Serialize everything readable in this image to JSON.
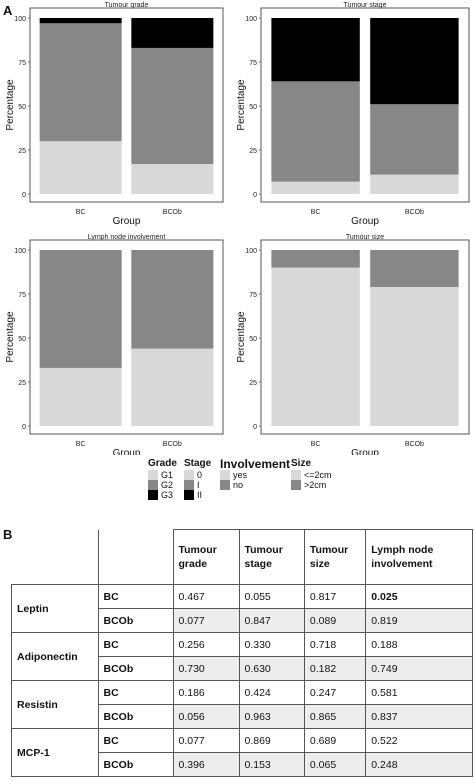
{
  "panel_a_letter": "A",
  "panel_b_letter": "B",
  "chart_data": [
    {
      "type": "bar",
      "stacked": true,
      "title": "Tumour grade",
      "xlabel": "Group",
      "ylabel": "Percentage",
      "categories": [
        "BC",
        "BCOb"
      ],
      "ylim": [
        0,
        100
      ],
      "yticks": [
        "0",
        "25",
        "50",
        "75",
        "100"
      ],
      "series": [
        {
          "name": "G1",
          "color": "#d8d8d8",
          "values": [
            30,
            17
          ]
        },
        {
          "name": "G2",
          "color": "#878787",
          "values": [
            67,
            66
          ]
        },
        {
          "name": "G3",
          "color": "#000000",
          "values": [
            3,
            17
          ]
        }
      ]
    },
    {
      "type": "bar",
      "stacked": true,
      "title": "Tumour stage",
      "xlabel": "Group",
      "ylabel": "Percentage",
      "categories": [
        "BC",
        "BCOb"
      ],
      "ylim": [
        0,
        100
      ],
      "yticks": [
        "0",
        "25",
        "50",
        "75",
        "100"
      ],
      "series": [
        {
          "name": "0",
          "color": "#d8d8d8",
          "values": [
            7,
            11
          ]
        },
        {
          "name": "I",
          "color": "#878787",
          "values": [
            57,
            40
          ]
        },
        {
          "name": "II",
          "color": "#000000",
          "values": [
            36,
            49
          ]
        }
      ]
    },
    {
      "type": "bar",
      "stacked": true,
      "title": "Lymph node involvement",
      "xlabel": "Group",
      "ylabel": "Percentage",
      "categories": [
        "BC",
        "BCOb"
      ],
      "ylim": [
        0,
        100
      ],
      "yticks": [
        "0",
        "25",
        "50",
        "75",
        "100"
      ],
      "series": [
        {
          "name": "yes",
          "color": "#d8d8d8",
          "values": [
            33,
            44
          ]
        },
        {
          "name": "no",
          "color": "#878787",
          "values": [
            67,
            56
          ]
        }
      ]
    },
    {
      "type": "bar",
      "stacked": true,
      "title": "Tumour size",
      "xlabel": "Group",
      "ylabel": "Percentage",
      "categories": [
        "BC",
        "BCOb"
      ],
      "ylim": [
        0,
        100
      ],
      "yticks": [
        "0",
        "25",
        "50",
        "75",
        "100"
      ],
      "series": [
        {
          "name": "<=2cm",
          "color": "#d8d8d8",
          "values": [
            90,
            79
          ]
        },
        {
          "name": ">2cm",
          "color": "#878787",
          "values": [
            10,
            21
          ]
        }
      ]
    }
  ],
  "legend": [
    {
      "title": "Grade",
      "entries": [
        {
          "label": "G1",
          "color": "#d8d8d8"
        },
        {
          "label": "G2",
          "color": "#878787"
        },
        {
          "label": "G3",
          "color": "#000000"
        }
      ]
    },
    {
      "title": "Stage",
      "entries": [
        {
          "label": "0",
          "color": "#d8d8d8"
        },
        {
          "label": "I",
          "color": "#878787"
        },
        {
          "label": "II",
          "color": "#000000"
        }
      ]
    },
    {
      "title": "Involvement",
      "entries": [
        {
          "label": "yes",
          "color": "#d8d8d8"
        },
        {
          "label": "no",
          "color": "#878787"
        }
      ]
    },
    {
      "title": "Size",
      "entries": [
        {
          "label": "<=2cm",
          "color": "#d8d8d8"
        },
        {
          "label": ">2cm",
          "color": "#878787"
        }
      ]
    }
  ],
  "table": {
    "headers": [
      "Tumour grade",
      "Tumour stage",
      "Tumour size",
      "Lymph node involvement"
    ],
    "markers": [
      {
        "name": "Leptin",
        "rows": [
          {
            "group": "BC",
            "values": [
              "0.467",
              "0.055",
              "0.817",
              "0.025"
            ]
          },
          {
            "group": "BCOb",
            "values": [
              "0.077",
              "0.847",
              "0.089",
              "0.819"
            ]
          }
        ]
      },
      {
        "name": "Adiponectin",
        "rows": [
          {
            "group": "BC",
            "values": [
              "0.256",
              "0.330",
              "0.718",
              "0.188"
            ]
          },
          {
            "group": "BCOb",
            "values": [
              "0.730",
              "0.630",
              "0.182",
              "0.749"
            ]
          }
        ]
      },
      {
        "name": "Resistin",
        "rows": [
          {
            "group": "BC",
            "values": [
              "0.186",
              "0.424",
              "0.247",
              "0.581"
            ]
          },
          {
            "group": "BCOb",
            "values": [
              "0.056",
              "0.963",
              "0.865",
              "0.837"
            ]
          }
        ]
      },
      {
        "name": "MCP-1",
        "rows": [
          {
            "group": "BC",
            "values": [
              "0.077",
              "0.869",
              "0.689",
              "0.522"
            ]
          },
          {
            "group": "BCOb",
            "values": [
              "0.396",
              "0.153",
              "0.065",
              "0.248"
            ]
          }
        ]
      }
    ]
  }
}
